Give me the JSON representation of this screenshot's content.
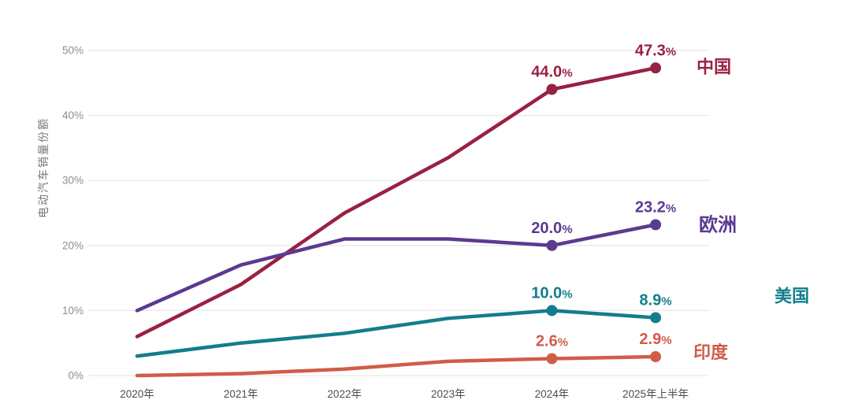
{
  "chart_data": {
    "type": "line",
    "title": "",
    "ylabel": "电动汽车销量份额",
    "xlabel": "",
    "categories": [
      "2020年",
      "2021年",
      "2022年",
      "2023年",
      "2024年",
      "2025年上半年"
    ],
    "y_ticks": [
      {
        "value": 0,
        "label": "0%"
      },
      {
        "value": 10,
        "label": "10%"
      },
      {
        "value": 20,
        "label": "20%"
      },
      {
        "value": 30,
        "label": "30%"
      },
      {
        "value": 40,
        "label": "40%"
      },
      {
        "value": 50,
        "label": "50%"
      }
    ],
    "ylim": [
      0,
      50
    ],
    "grid": "horizontal-only",
    "legend_position": "right-of-last-point",
    "series": [
      {
        "name": "中国",
        "color": "#992142",
        "values": [
          6.0,
          14.0,
          25.0,
          33.5,
          44.0,
          47.3
        ],
        "point_labels": [
          null,
          null,
          null,
          null,
          "44.0%",
          "47.3%"
        ],
        "name_offset": {
          "dx": 52,
          "dy": -2
        },
        "name_size": 22
      },
      {
        "name": "欧洲",
        "color": "#5b3a91",
        "values": [
          10.0,
          17.0,
          21.0,
          21.0,
          20.0,
          23.2
        ],
        "point_labels": [
          null,
          null,
          null,
          null,
          "20.0%",
          "23.2%"
        ],
        "name_offset": {
          "dx": 55,
          "dy": 0
        },
        "name_size": 24
      },
      {
        "name": "美国",
        "color": "#117e8c",
        "values": [
          3.0,
          5.0,
          6.5,
          8.8,
          10.0,
          8.9
        ],
        "point_labels": [
          null,
          null,
          null,
          null,
          "10.0%",
          "8.9%"
        ],
        "name_offset": {
          "dx": 151,
          "dy": -28
        },
        "name_size": 22
      },
      {
        "name": "印度",
        "color": "#d15c48",
        "values": [
          0.0,
          0.3,
          1.0,
          2.2,
          2.6,
          2.9
        ],
        "point_labels": [
          null,
          null,
          null,
          null,
          "2.6%",
          "2.9%"
        ],
        "name_offset": {
          "dx": 48,
          "dy": -6
        },
        "name_size": 22
      }
    ]
  },
  "style_colors": {
    "gridline": "#e8e8e8",
    "tick_text": "#8d8d8d",
    "category_text": "#4d4d4d",
    "axis_title_text": "#767676",
    "background": "#ffffff"
  }
}
